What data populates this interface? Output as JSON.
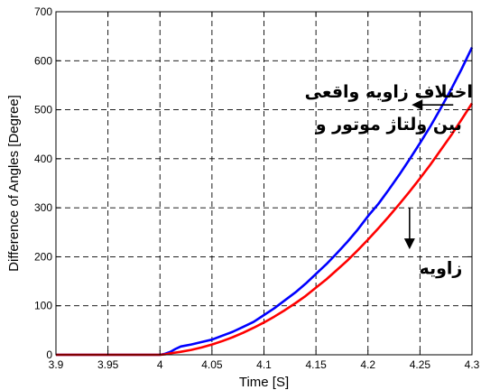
{
  "chart_data": {
    "type": "line",
    "xlabel": "Time [S]",
    "ylabel": "Difference of Angles [Degree]",
    "xlim": [
      3.9,
      4.3
    ],
    "ylim": [
      0,
      700
    ],
    "x_ticks": [
      "3.9",
      "3.95",
      "4",
      "4.05",
      "4.1",
      "4.15",
      "4.2",
      "4.25",
      "4.3"
    ],
    "y_ticks": [
      "0",
      "100",
      "200",
      "300",
      "400",
      "500",
      "600",
      "700"
    ],
    "grid": true,
    "series": [
      {
        "color": "#0000ff",
        "x": [
          3.9,
          3.95,
          4.0,
          4.005,
          4.01,
          4.015,
          4.02,
          4.03,
          4.04,
          4.05,
          4.06,
          4.07,
          4.08,
          4.09,
          4.1,
          4.11,
          4.12,
          4.13,
          4.14,
          4.15,
          4.16,
          4.17,
          4.18,
          4.19,
          4.2,
          4.21,
          4.22,
          4.23,
          4.24,
          4.25,
          4.26,
          4.27,
          4.28,
          4.29,
          4.3
        ],
        "y": [
          0,
          0,
          0,
          2,
          6,
          12,
          17,
          21,
          26,
          31,
          39,
          47,
          57,
          67,
          81,
          95,
          111,
          127,
          145,
          165,
          185,
          207,
          230,
          255,
          283,
          308,
          337,
          367,
          399,
          432,
          466,
          503,
          542,
          583,
          627
        ]
      },
      {
        "color": "#ff0000",
        "x": [
          3.9,
          3.95,
          4.0,
          4.005,
          4.01,
          4.02,
          4.03,
          4.04,
          4.05,
          4.06,
          4.07,
          4.08,
          4.09,
          4.1,
          4.11,
          4.12,
          4.13,
          4.14,
          4.15,
          4.16,
          4.17,
          4.18,
          4.19,
          4.2,
          4.21,
          4.22,
          4.23,
          4.24,
          4.25,
          4.26,
          4.27,
          4.28,
          4.29,
          4.3
        ],
        "y": [
          0,
          0,
          0,
          1,
          3,
          6,
          10,
          15,
          21,
          28,
          36,
          45,
          55,
          66,
          78,
          91,
          105,
          120,
          137,
          154,
          173,
          192,
          213,
          235,
          258,
          282,
          307,
          333,
          360,
          388,
          418,
          448,
          480,
          513
        ]
      }
    ],
    "annotations": [
      {
        "lines": [
          "اختلاف زاویه واقعی",
          "بین ولتاژ موتور و"
        ],
        "color": "#000000",
        "x": 4.22,
        "y": 525
      },
      {
        "lines": [
          "زاویه"
        ],
        "color": "#000000",
        "x": 4.27,
        "y": 165
      }
    ],
    "arrows": [
      {
        "direction": "left",
        "x": 4.282,
        "y": 510
      },
      {
        "direction": "down",
        "x": 4.24,
        "y": 300
      }
    ]
  }
}
